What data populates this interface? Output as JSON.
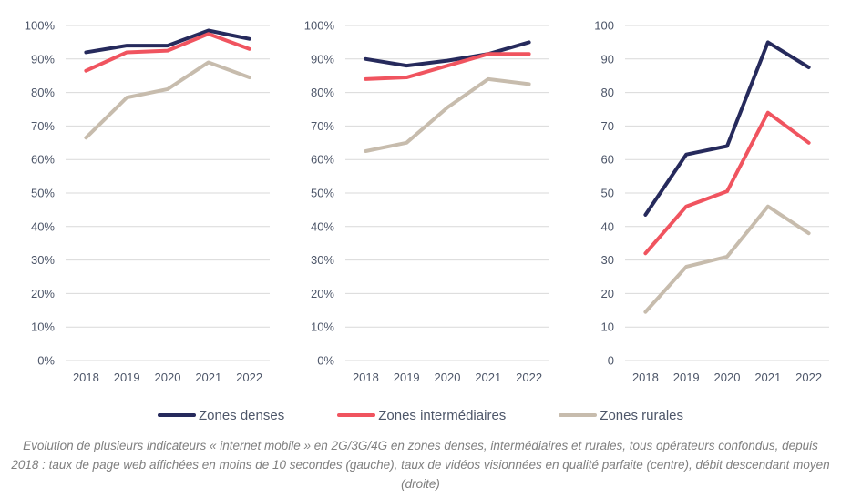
{
  "colors": {
    "dense": "#262a5c",
    "intermediaire": "#f0545f",
    "rurale": "#c7bcad",
    "gridline": "#d9d9d9",
    "tick_text": "#4d5669",
    "legend_text": "#4d5669",
    "caption_text": "#7f7f7f"
  },
  "legend": {
    "items": [
      {
        "label": "Zones denses",
        "color": "#262a5c"
      },
      {
        "label": "Zones intermédiaires",
        "color": "#f0545f"
      },
      {
        "label": "Zones rurales",
        "color": "#c7bcad"
      }
    ]
  },
  "caption": "Evolution de plusieurs indicateurs « internet mobile » en 2G/3G/4G en zones denses, intermédiaires et rurales, tous opérateurs confondus, depuis 2018 : taux de page web affichées en moins de 10 secondes (gauche), taux de vidéos visionnées en qualité parfaite (centre), débit descendant moyen (droite)",
  "chart_data": [
    {
      "type": "line",
      "position": "gauche",
      "categories": [
        "2018",
        "2019",
        "2020",
        "2021",
        "2022"
      ],
      "ylim": [
        0,
        100
      ],
      "ytick_step": 10,
      "ytick_format": "percent",
      "grid": true,
      "series": [
        {
          "name": "Zones denses",
          "color": "#262a5c",
          "values": [
            92,
            94,
            94,
            98.5,
            96
          ]
        },
        {
          "name": "Zones intermédiaires",
          "color": "#f0545f",
          "values": [
            86.5,
            92,
            92.5,
            97.5,
            93
          ]
        },
        {
          "name": "Zones rurales",
          "color": "#c7bcad",
          "values": [
            66.5,
            78.5,
            81,
            89,
            84.5
          ]
        }
      ]
    },
    {
      "type": "line",
      "position": "centre",
      "categories": [
        "2018",
        "2019",
        "2020",
        "2021",
        "2022"
      ],
      "ylim": [
        0,
        100
      ],
      "ytick_step": 10,
      "ytick_format": "percent",
      "grid": true,
      "series": [
        {
          "name": "Zones denses",
          "color": "#262a5c",
          "values": [
            90,
            88,
            89.5,
            91.5,
            95
          ]
        },
        {
          "name": "Zones intermédiaires",
          "color": "#f0545f",
          "values": [
            84,
            84.5,
            88,
            91.5,
            91.5
          ]
        },
        {
          "name": "Zones rurales",
          "color": "#c7bcad",
          "values": [
            62.5,
            65,
            75.5,
            84,
            82.5
          ]
        }
      ]
    },
    {
      "type": "line",
      "position": "droite",
      "categories": [
        "2018",
        "2019",
        "2020",
        "2021",
        "2022"
      ],
      "ylim": [
        0,
        100
      ],
      "ytick_step": 10,
      "ytick_format": "number",
      "grid": true,
      "series": [
        {
          "name": "Zones denses",
          "color": "#262a5c",
          "values": [
            43.5,
            61.5,
            64,
            95,
            87.5
          ]
        },
        {
          "name": "Zones intermédiaires",
          "color": "#f0545f",
          "values": [
            32,
            46,
            50.5,
            74,
            65
          ]
        },
        {
          "name": "Zones rurales",
          "color": "#c7bcad",
          "values": [
            14.5,
            28,
            31,
            46,
            38
          ]
        }
      ]
    }
  ]
}
